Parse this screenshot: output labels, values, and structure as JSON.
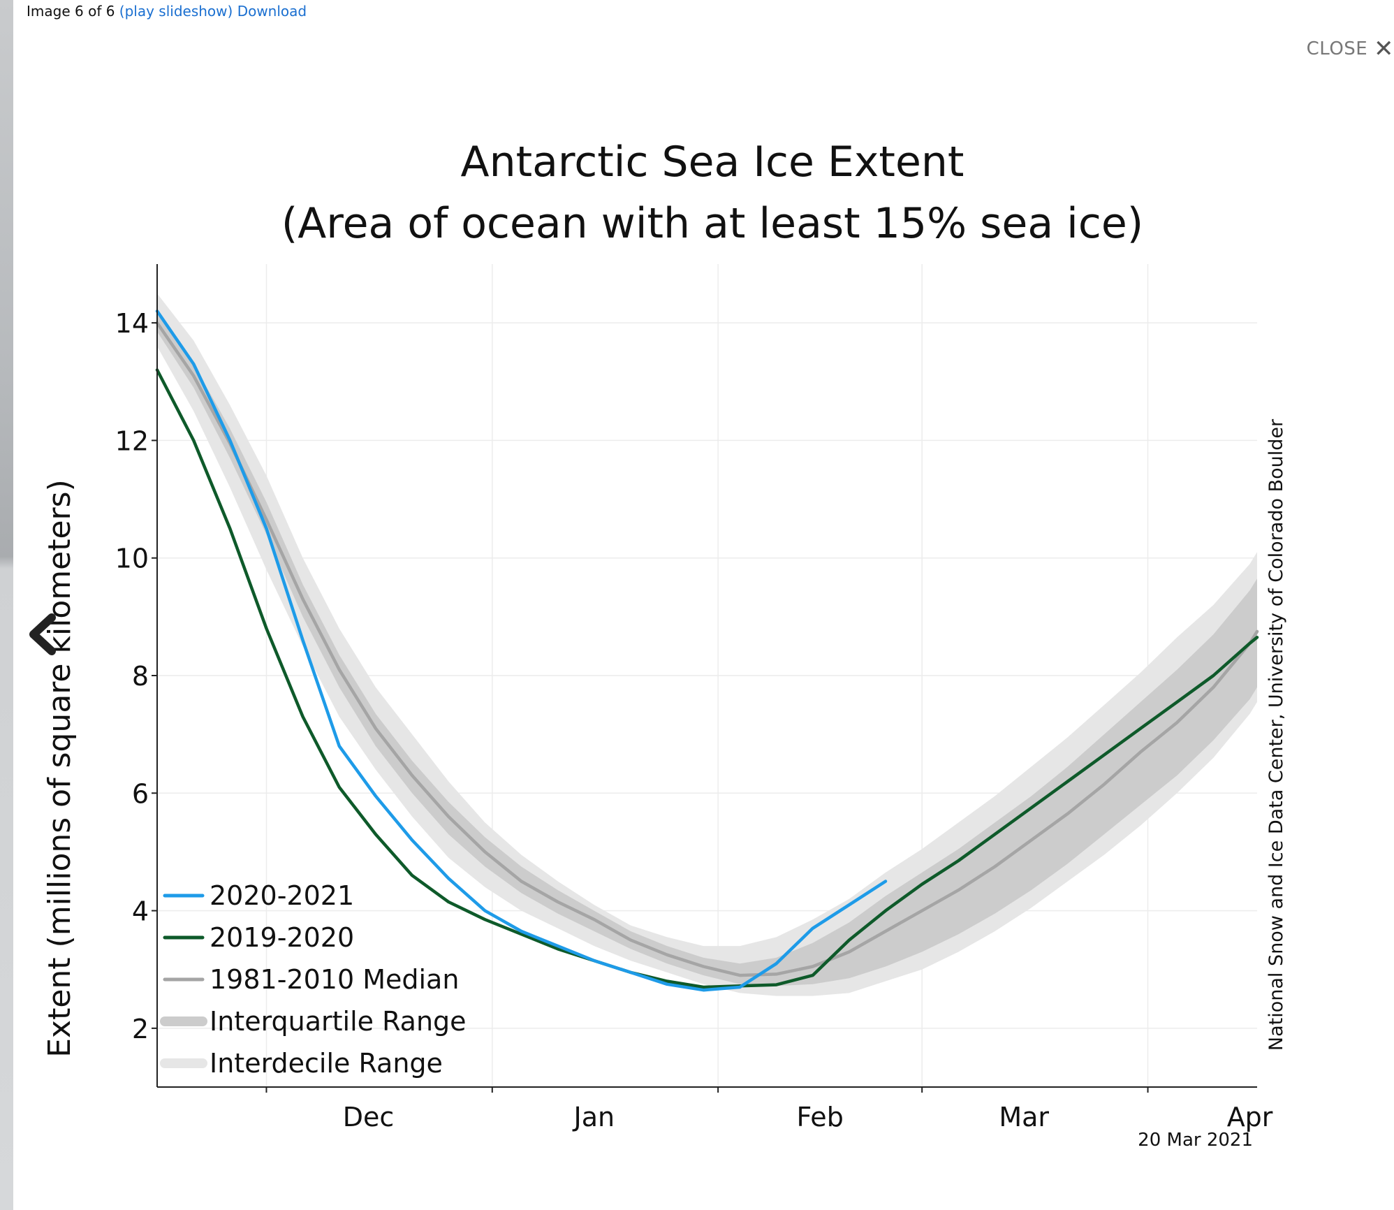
{
  "topbar": {
    "counter": "Image 6 of 6",
    "slideshow": "(play slideshow)",
    "download": "Download"
  },
  "close": {
    "label": "CLOSE",
    "icon": "close-icon"
  },
  "nav": {
    "prev_icon": "chevron-left-icon"
  },
  "chart_data": {
    "type": "line",
    "title": "Antarctic Sea Ice Extent",
    "subtitle": "(Area of ocean with at least 15% sea ice)",
    "ylabel": "Extent (millions of square kilometers)",
    "xlabel": "",
    "ylim": [
      1,
      15
    ],
    "yticks": [
      2,
      4,
      6,
      8,
      10,
      12,
      14
    ],
    "xlim": [
      "Nov 16",
      "Apr 16"
    ],
    "month_labels": [
      "Dec",
      "Jan",
      "Feb",
      "Mar",
      "Apr"
    ],
    "month_labels_at": [
      "Dec 15",
      "Jan 15",
      "Feb 15",
      "Mar 15",
      "Apr 15"
    ],
    "month_boundaries": [
      "Dec 1",
      "Jan 1",
      "Feb 1",
      "Mar 1",
      "Apr 1"
    ],
    "grid": true,
    "legend_position": "bottom-left",
    "colors": {
      "2020-2021": "#1e9be8",
      "2019-2020": "#0e5a2a",
      "median": "#a5a5a5",
      "interquartile": "#cccccc",
      "interdecile": "#e6e6e6"
    },
    "legend": [
      "2020-2021",
      "2019-2020",
      "1981-2010 Median",
      "Interquartile Range",
      "Interdecile Range"
    ],
    "x": [
      "Nov 16",
      "Nov 21",
      "Nov 26",
      "Dec 1",
      "Dec 6",
      "Dec 11",
      "Dec 16",
      "Dec 21",
      "Dec 26",
      "Dec 31",
      "Jan 5",
      "Jan 10",
      "Jan 15",
      "Jan 20",
      "Jan 25",
      "Jan 30",
      "Feb 4",
      "Feb 9",
      "Feb 14",
      "Feb 19",
      "Feb 24",
      "Mar 1",
      "Mar 6",
      "Mar 11",
      "Mar 16",
      "Mar 21",
      "Mar 26",
      "Mar 31",
      "Apr 5",
      "Apr 10",
      "Apr 15",
      "Apr 16"
    ],
    "series": [
      {
        "name": "Interdecile Range",
        "low": [
          13.6,
          12.5,
          11.2,
          9.8,
          8.5,
          7.3,
          6.4,
          5.6,
          4.9,
          4.4,
          4.0,
          3.7,
          3.4,
          3.15,
          2.95,
          2.75,
          2.6,
          2.55,
          2.55,
          2.6,
          2.8,
          3.0,
          3.3,
          3.65,
          4.05,
          4.5,
          4.95,
          5.45,
          6.0,
          6.6,
          7.35,
          7.55
        ],
        "high": [
          14.5,
          13.7,
          12.6,
          11.4,
          10.0,
          8.8,
          7.8,
          7.0,
          6.2,
          5.5,
          4.95,
          4.5,
          4.1,
          3.75,
          3.55,
          3.4,
          3.4,
          3.55,
          3.85,
          4.2,
          4.65,
          5.05,
          5.5,
          5.95,
          6.45,
          6.95,
          7.5,
          8.05,
          8.65,
          9.2,
          9.9,
          10.1
        ]
      },
      {
        "name": "Interquartile Range",
        "low": [
          13.85,
          12.9,
          11.7,
          10.4,
          9.0,
          7.8,
          6.8,
          6.0,
          5.3,
          4.75,
          4.3,
          3.95,
          3.65,
          3.35,
          3.1,
          2.9,
          2.75,
          2.72,
          2.75,
          2.85,
          3.05,
          3.3,
          3.6,
          3.95,
          4.35,
          4.8,
          5.3,
          5.8,
          6.3,
          6.9,
          7.6,
          7.8
        ],
        "high": [
          14.15,
          13.3,
          12.2,
          10.95,
          9.55,
          8.35,
          7.35,
          6.55,
          5.85,
          5.25,
          4.75,
          4.35,
          4.0,
          3.65,
          3.4,
          3.2,
          3.1,
          3.2,
          3.45,
          3.8,
          4.25,
          4.65,
          5.05,
          5.5,
          5.95,
          6.45,
          7.0,
          7.55,
          8.1,
          8.7,
          9.45,
          9.65
        ]
      },
      {
        "name": "1981-2010 Median",
        "values": [
          14.0,
          13.1,
          11.95,
          10.65,
          9.3,
          8.1,
          7.1,
          6.3,
          5.6,
          5.0,
          4.5,
          4.15,
          3.85,
          3.5,
          3.25,
          3.05,
          2.9,
          2.92,
          3.05,
          3.3,
          3.65,
          4.0,
          4.35,
          4.75,
          5.2,
          5.65,
          6.15,
          6.7,
          7.2,
          7.8,
          8.55,
          8.75
        ]
      },
      {
        "name": "2019-2020",
        "values": [
          13.2,
          12.0,
          10.5,
          8.8,
          7.3,
          6.1,
          5.3,
          4.6,
          4.15,
          3.85,
          3.6,
          3.35,
          3.15,
          2.95,
          2.8,
          2.7,
          2.72,
          2.74,
          2.9,
          3.5,
          4.0,
          4.45,
          4.85,
          5.3,
          5.75,
          6.2,
          6.65,
          7.1,
          7.55,
          8.0,
          8.55,
          8.65
        ]
      },
      {
        "name": "2020-2021",
        "values": [
          14.2,
          13.3,
          12.0,
          10.5,
          8.6,
          6.8,
          5.95,
          5.2,
          4.55,
          4.0,
          3.65,
          3.4,
          3.15,
          2.95,
          2.75,
          2.65,
          2.7,
          3.1,
          3.7,
          4.1,
          4.5,
          null,
          null,
          null,
          null,
          null,
          null,
          null,
          null,
          null,
          null,
          null
        ]
      }
    ],
    "side_credit": "National Snow and Ice Data Center, University of Colorado Boulder",
    "date_stamp": "20 Mar 2021"
  }
}
